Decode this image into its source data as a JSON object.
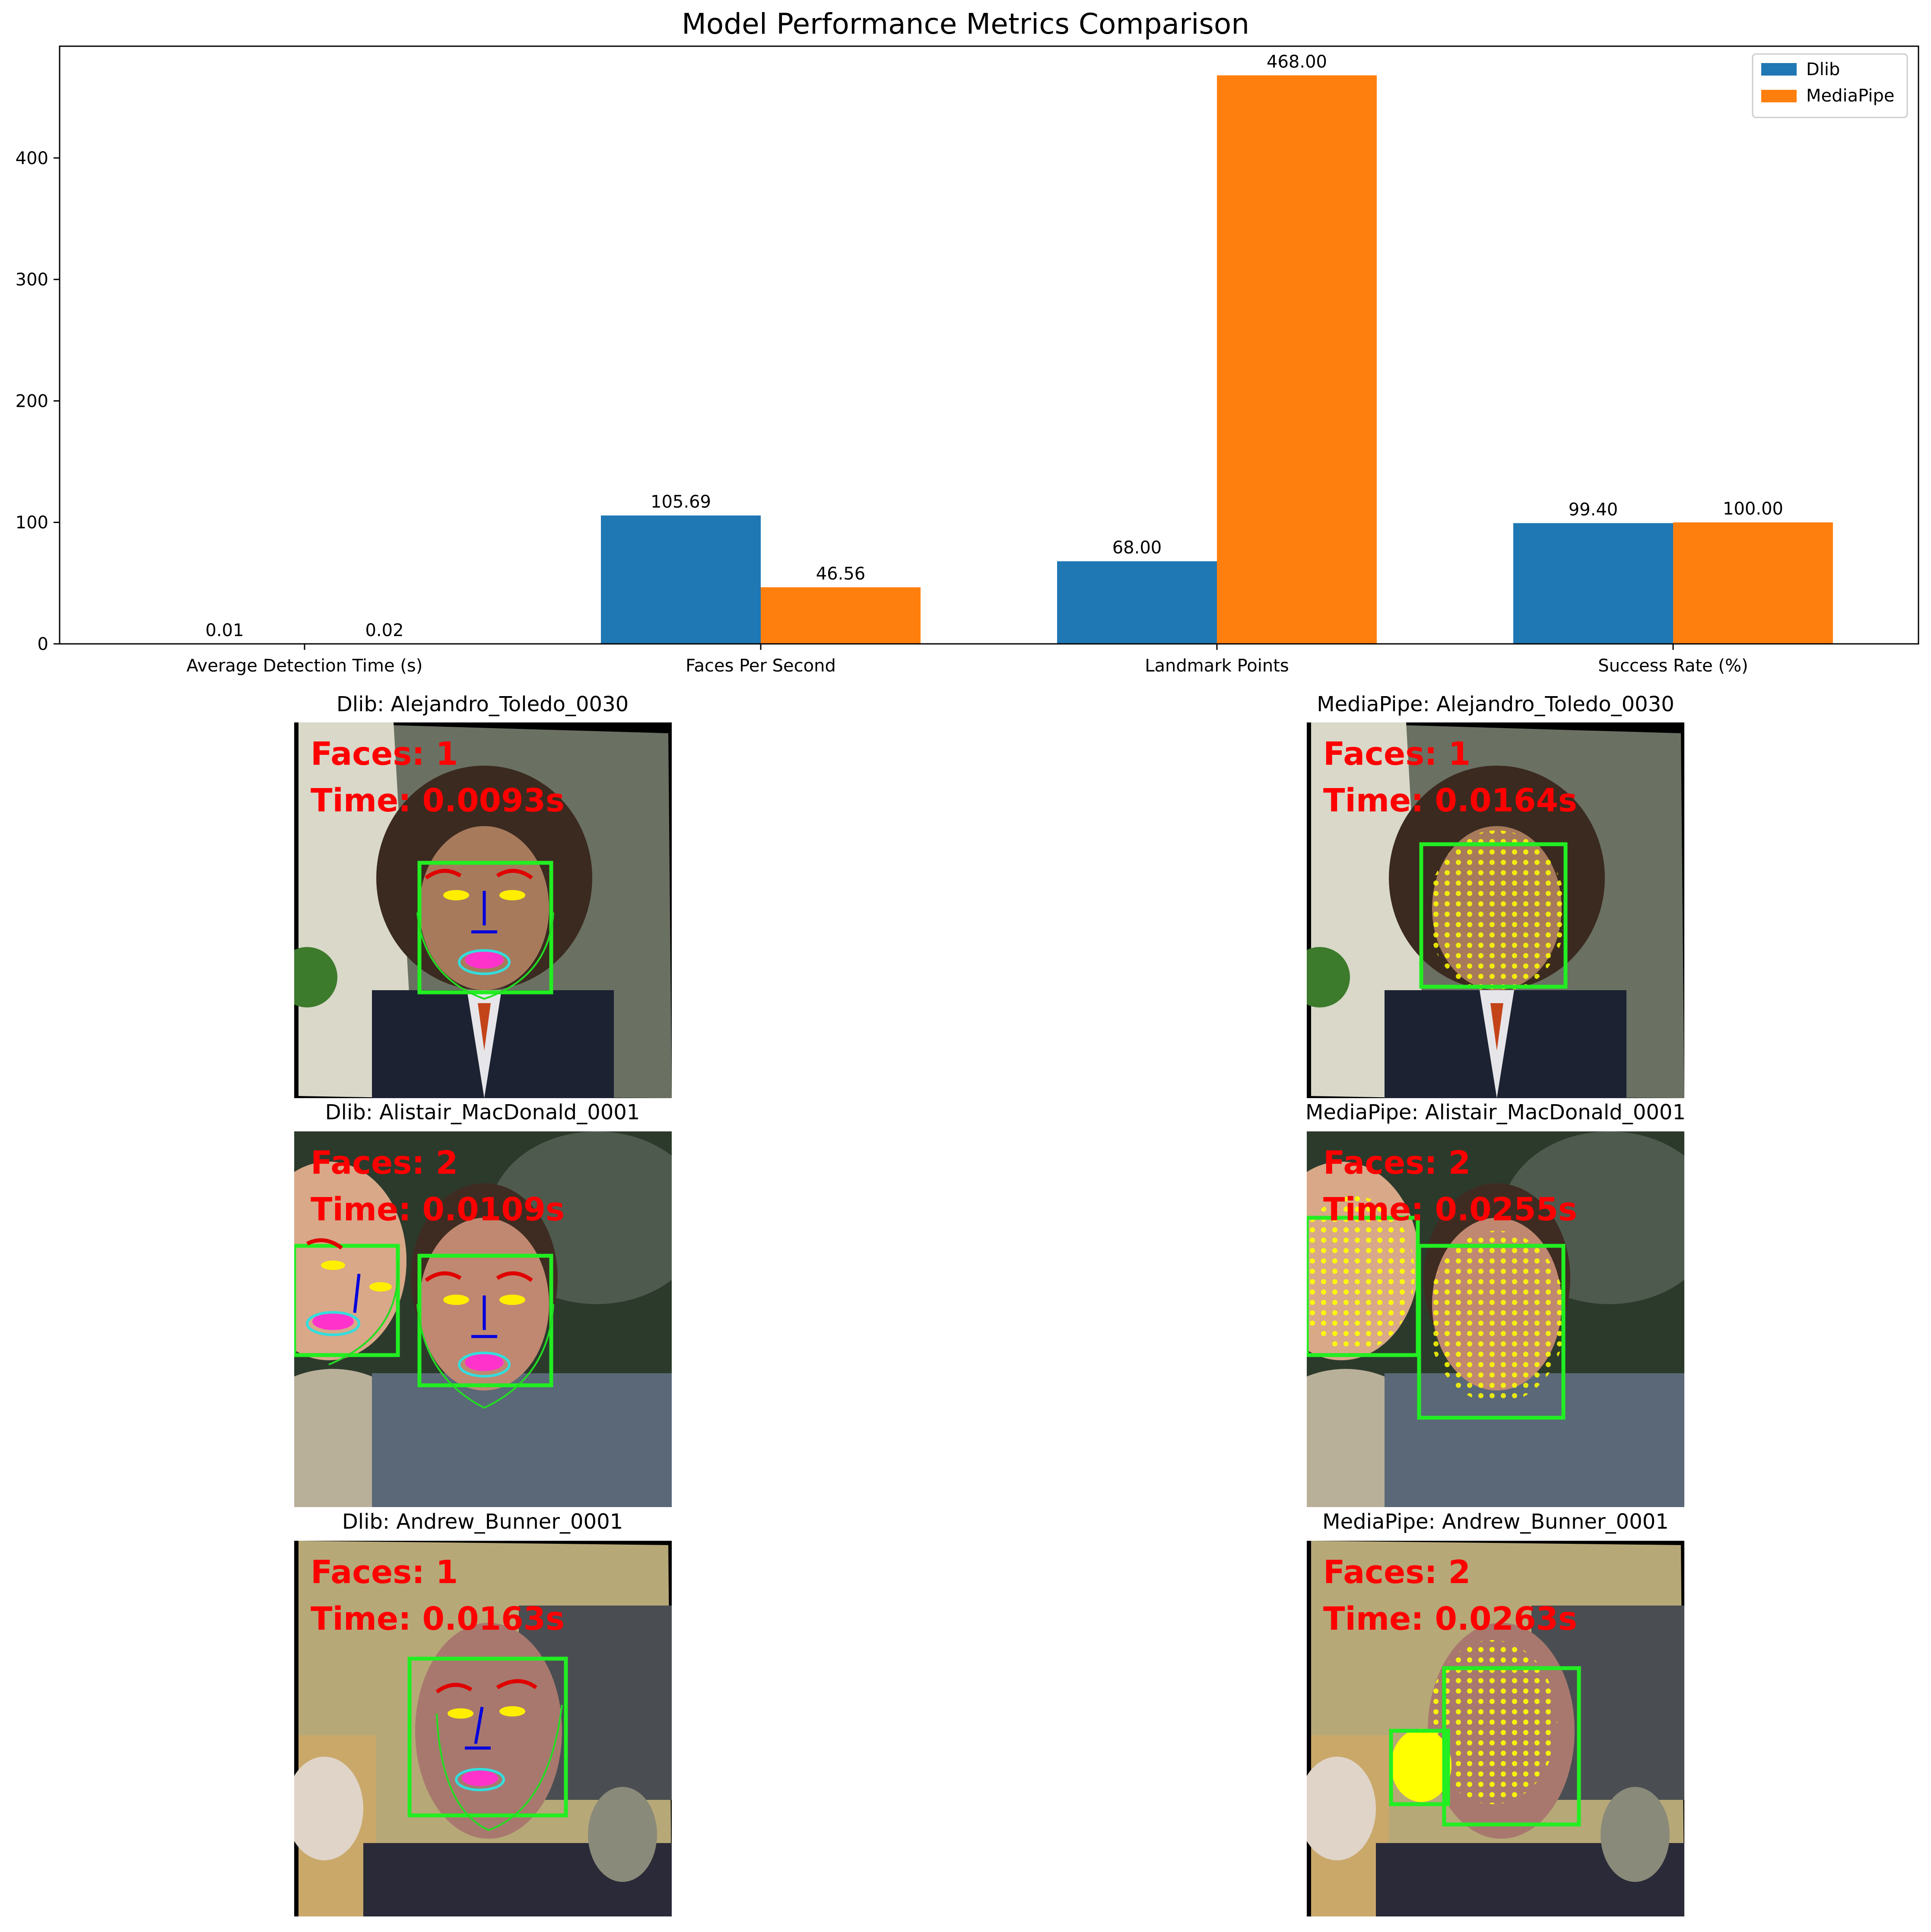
{
  "colors": {
    "dlib": "#1f77b4",
    "mediapipe": "#ff7f0e",
    "box": "#22ee22",
    "overlay_text": "#ff0000"
  },
  "chart_data": {
    "type": "bar",
    "title": "Model Performance Metrics Comparison",
    "categories": [
      "Average Detection Time (s)",
      "Faces Per Second",
      "Landmark Points",
      "Success Rate (%)"
    ],
    "series": [
      {
        "name": "Dlib",
        "values": [
          0.01,
          105.69,
          68.0,
          99.4
        ],
        "labels": [
          "0.01",
          "105.69",
          "68.00",
          "99.40"
        ]
      },
      {
        "name": "MediaPipe",
        "values": [
          0.02,
          46.56,
          468.0,
          100.0
        ],
        "labels": [
          "0.02",
          "46.56",
          "468.00",
          "100.00"
        ]
      }
    ],
    "ylim": [
      0,
      492
    ],
    "yticks": [
      0,
      100,
      200,
      300,
      400
    ],
    "legend": "top-right",
    "grid": false
  },
  "panels": [
    {
      "title": "Dlib: Alejandro_Toledo_0030",
      "faces": "Faces: 1",
      "time": "Time: 0.0093s"
    },
    {
      "title": "MediaPipe: Alejandro_Toledo_0030",
      "faces": "Faces: 1",
      "time": "Time: 0.0164s"
    },
    {
      "title": "Dlib: Alistair_MacDonald_0001",
      "faces": "Faces: 2",
      "time": "Time: 0.0109s"
    },
    {
      "title": "MediaPipe: Alistair_MacDonald_0001",
      "faces": "Faces: 2",
      "time": "Time: 0.0255s"
    },
    {
      "title": "Dlib: Andrew_Bunner_0001",
      "faces": "Faces: 1",
      "time": "Time: 0.0163s"
    },
    {
      "title": "MediaPipe: Andrew_Bunner_0001",
      "faces": "Faces: 2",
      "time": "Time: 0.0263s"
    }
  ]
}
